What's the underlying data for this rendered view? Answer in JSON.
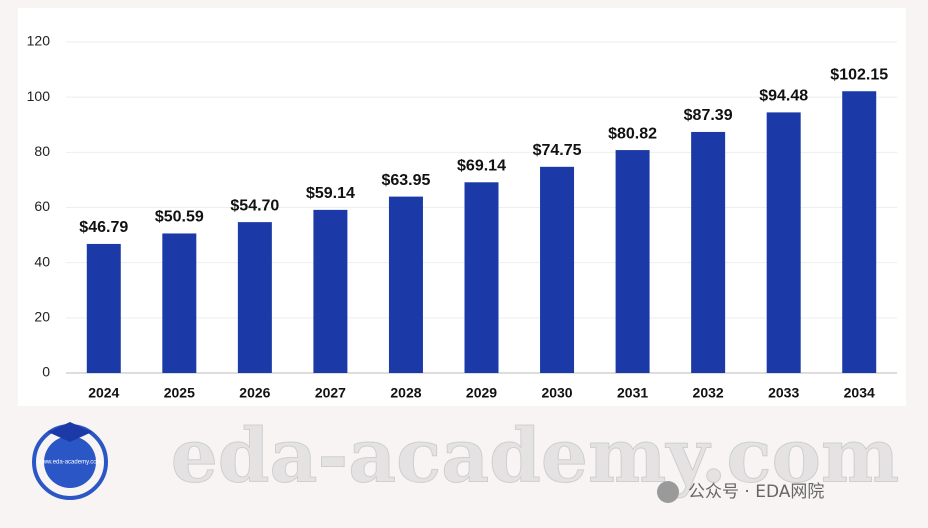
{
  "chart_data": {
    "type": "bar",
    "categories": [
      "2024",
      "2025",
      "2026",
      "2027",
      "2028",
      "2029",
      "2030",
      "2031",
      "2032",
      "2033",
      "2034"
    ],
    "values": [
      46.79,
      50.59,
      54.7,
      59.14,
      63.95,
      69.14,
      74.75,
      80.82,
      87.39,
      94.48,
      102.15
    ],
    "value_labels": [
      "$46.79",
      "$50.59",
      "$54.70",
      "$59.14",
      "$63.95",
      "$69.14",
      "$74.75",
      "$80.82",
      "$87.39",
      "$94.48",
      "$102.15"
    ],
    "color": "#1b3aa8",
    "ylim": [
      0,
      120
    ],
    "yticks": [
      0,
      20,
      40,
      60,
      80,
      100,
      120
    ],
    "grid": true
  },
  "watermark": {
    "text": "eda-academy.com",
    "logo_text": "www.eda-academy.com"
  },
  "footer": {
    "text": "公众号 · EDA网院"
  }
}
